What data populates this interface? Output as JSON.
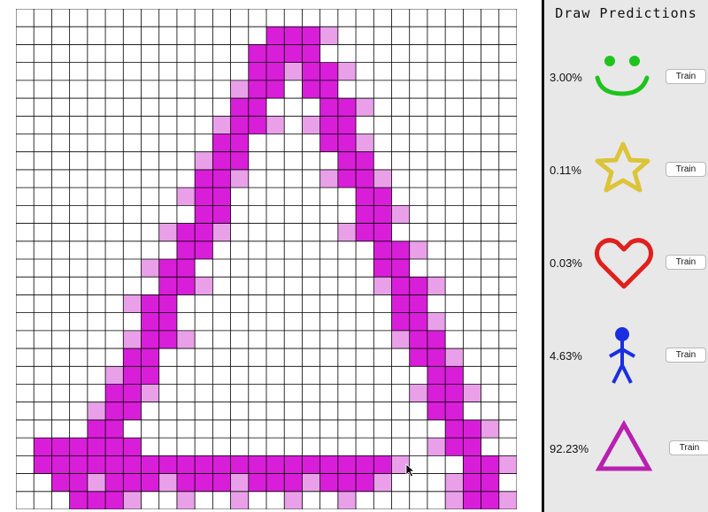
{
  "panel": {
    "title": "Draw Predictions"
  },
  "predictions": [
    {
      "percent": "3.00%",
      "icon": "smiley-icon",
      "color": "#1ec31e",
      "train_label": "Train"
    },
    {
      "percent": "0.11%",
      "icon": "star-icon",
      "color": "#dcc43a",
      "train_label": "Train"
    },
    {
      "percent": "0.03%",
      "icon": "heart-icon",
      "color": "#e0201c",
      "train_label": "Train"
    },
    {
      "percent": "4.63%",
      "icon": "stickman-icon",
      "color": "#1a2fe0",
      "train_label": "Train"
    },
    {
      "percent": "92.23%",
      "icon": "triangle-icon",
      "color": "#b820b0",
      "train_label": "Train"
    }
  ],
  "colors": {
    "fill_strong": "#d91ed9",
    "fill_light": "#e9a0e9",
    "grid_line": "#000000",
    "panel_bg": "#e9e8e9"
  },
  "grid": {
    "cols": 28,
    "rows": 28
  }
}
